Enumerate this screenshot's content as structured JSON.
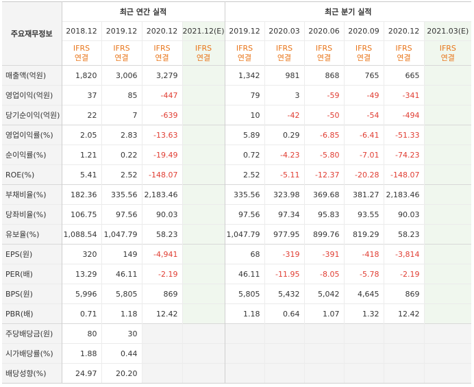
{
  "header": {
    "corner_label": "주요재무정보",
    "annual_group": "최근 연간 실적",
    "quarter_group": "최근 분기 실적",
    "annual_periods": [
      "2018.12",
      "2019.12",
      "2020.12",
      "2021.12(E)"
    ],
    "quarter_periods": [
      "2019.12",
      "2020.03",
      "2020.06",
      "2020.09",
      "2020.12",
      "2021.03(E)"
    ],
    "ifrs_line1": "IFRS",
    "ifrs_line2": "연결"
  },
  "rows": [
    {
      "label": "매출액(억원)",
      "annual": [
        "1,820",
        "3,006",
        "3,279",
        ""
      ],
      "quarter": [
        "1,342",
        "981",
        "868",
        "765",
        "665",
        ""
      ]
    },
    {
      "label": "영업이익(억원)",
      "annual": [
        "37",
        "85",
        "-447",
        ""
      ],
      "quarter": [
        "79",
        "3",
        "-59",
        "-49",
        "-341",
        ""
      ]
    },
    {
      "label": "당기순이익(억원)",
      "annual": [
        "22",
        "7",
        "-639",
        ""
      ],
      "quarter": [
        "10",
        "-42",
        "-50",
        "-54",
        "-494",
        ""
      ]
    },
    {
      "label": "영업이익률(%)",
      "annual": [
        "2.05",
        "2.83",
        "-13.63",
        ""
      ],
      "quarter": [
        "5.89",
        "0.29",
        "-6.85",
        "-6.41",
        "-51.33",
        ""
      ]
    },
    {
      "label": "순이익률(%)",
      "annual": [
        "1.21",
        "0.22",
        "-19.49",
        ""
      ],
      "quarter": [
        "0.72",
        "-4.23",
        "-5.80",
        "-7.01",
        "-74.23",
        ""
      ]
    },
    {
      "label": "ROE(%)",
      "annual": [
        "5.41",
        "2.52",
        "-148.07",
        ""
      ],
      "quarter": [
        "2.52",
        "-5.11",
        "-12.37",
        "-20.28",
        "-148.07",
        ""
      ]
    },
    {
      "label": "부채비율(%)",
      "annual": [
        "182.36",
        "335.56",
        "2,183.46",
        ""
      ],
      "quarter": [
        "335.56",
        "323.98",
        "369.68",
        "381.27",
        "2,183.46",
        ""
      ]
    },
    {
      "label": "당좌비율(%)",
      "annual": [
        "106.75",
        "97.56",
        "90.03",
        ""
      ],
      "quarter": [
        "97.56",
        "97.34",
        "95.83",
        "93.55",
        "90.03",
        ""
      ]
    },
    {
      "label": "유보율(%)",
      "annual": [
        "1,088.54",
        "1,047.79",
        "58.23",
        ""
      ],
      "quarter": [
        "1,047.79",
        "977.95",
        "899.76",
        "819.29",
        "58.23",
        ""
      ]
    },
    {
      "label": "EPS(원)",
      "annual": [
        "320",
        "149",
        "-4,941",
        ""
      ],
      "quarter": [
        "68",
        "-319",
        "-391",
        "-418",
        "-3,814",
        ""
      ]
    },
    {
      "label": "PER(배)",
      "annual": [
        "13.29",
        "46.11",
        "-2.19",
        ""
      ],
      "quarter": [
        "46.11",
        "-11.95",
        "-8.05",
        "-5.78",
        "-2.19",
        ""
      ]
    },
    {
      "label": "BPS(원)",
      "annual": [
        "5,996",
        "5,805",
        "869",
        ""
      ],
      "quarter": [
        "5,805",
        "5,432",
        "5,042",
        "4,645",
        "869",
        ""
      ]
    },
    {
      "label": "PBR(배)",
      "annual": [
        "0.71",
        "1.18",
        "12.42",
        ""
      ],
      "quarter": [
        "1.18",
        "0.64",
        "1.07",
        "1.32",
        "12.42",
        ""
      ]
    },
    {
      "label": "주당배당금(원)",
      "annual": [
        "80",
        "30",
        "",
        ""
      ],
      "quarter": [
        "",
        "",
        "",
        "",
        "",
        ""
      ]
    },
    {
      "label": "시가배당률(%)",
      "annual": [
        "1.88",
        "0.44",
        "",
        ""
      ],
      "quarter": [
        "",
        "",
        "",
        "",
        "",
        ""
      ]
    },
    {
      "label": "배당성향(%)",
      "annual": [
        "24.97",
        "20.20",
        "",
        ""
      ],
      "quarter": [
        "",
        "",
        "",
        "",
        "",
        ""
      ]
    }
  ],
  "colors": {
    "negative": "#e03c31",
    "ifrs": "#e8751a",
    "estimate_bg": "#f0f7ee",
    "label_bg": "#f4f4f4"
  }
}
